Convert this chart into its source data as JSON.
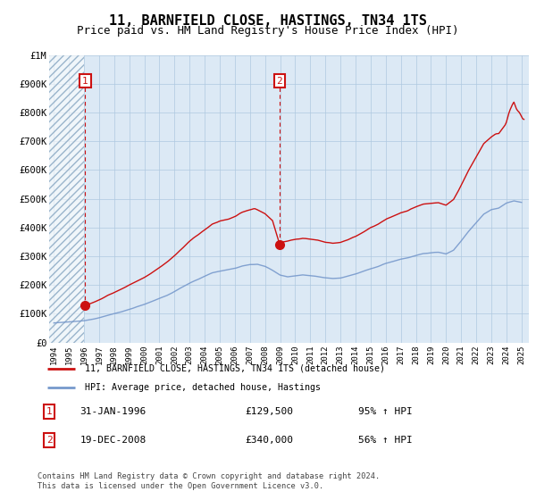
{
  "title": "11, BARNFIELD CLOSE, HASTINGS, TN34 1TS",
  "subtitle": "Price paid vs. HM Land Registry's House Price Index (HPI)",
  "title_fontsize": 11,
  "subtitle_fontsize": 9,
  "legend_line1": "11, BARNFIELD CLOSE, HASTINGS, TN34 1TS (detached house)",
  "legend_line2": "HPI: Average price, detached house, Hastings",
  "footer": "Contains HM Land Registry data © Crown copyright and database right 2024.\nThis data is licensed under the Open Government Licence v3.0.",
  "sale1_date": "31-JAN-1996",
  "sale1_price": "£129,500",
  "sale1_hpi": "95% ↑ HPI",
  "sale2_date": "19-DEC-2008",
  "sale2_price": "£340,000",
  "sale2_hpi": "56% ↑ HPI",
  "red_color": "#cc1111",
  "blue_color": "#7799cc",
  "background_color": "#dce9f5",
  "grid_color": "#afc8e0",
  "xlim": [
    1993.7,
    2025.5
  ],
  "ylim": [
    0,
    1000000
  ],
  "yticks": [
    0,
    100000,
    200000,
    300000,
    400000,
    500000,
    600000,
    700000,
    800000,
    900000,
    1000000
  ],
  "ytick_labels": [
    "£0",
    "£100K",
    "£200K",
    "£300K",
    "£400K",
    "£500K",
    "£600K",
    "£700K",
    "£800K",
    "£900K",
    "£1M"
  ],
  "xticks": [
    1994,
    1995,
    1996,
    1997,
    1998,
    1999,
    2000,
    2001,
    2002,
    2003,
    2004,
    2005,
    2006,
    2007,
    2008,
    2009,
    2010,
    2011,
    2012,
    2013,
    2014,
    2015,
    2016,
    2017,
    2018,
    2019,
    2020,
    2021,
    2022,
    2023,
    2024,
    2025
  ],
  "hatch_xmax": 1996.0,
  "sale1_x": 1996.08,
  "sale1_y": 129500,
  "sale2_x": 2008.96,
  "sale2_y": 340000,
  "sale1_marker_y": 910000,
  "sale2_marker_y": 910000
}
